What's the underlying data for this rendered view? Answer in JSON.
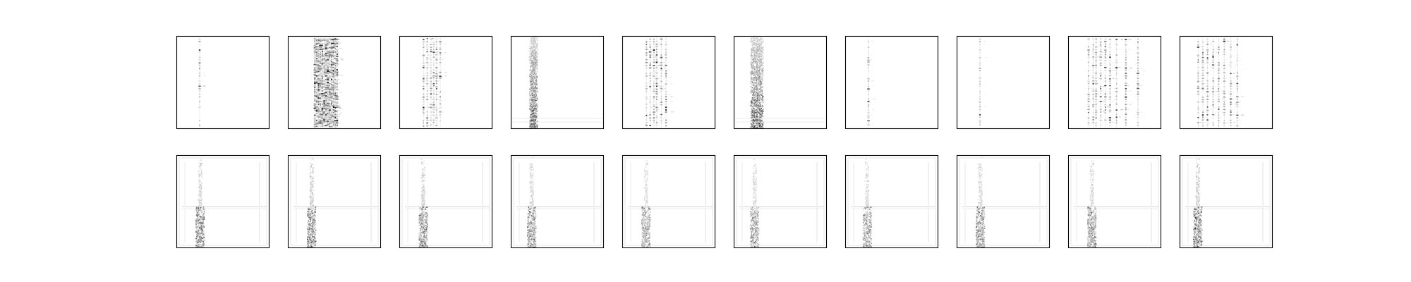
{
  "figure": {
    "grid": {
      "rows": 2,
      "cols": 10
    },
    "axes_ticks": "off",
    "frame_color": "#000000",
    "colormap": "gray_r",
    "rows": [
      {
        "name": "top-row",
        "panels": [
          {
            "columns": [
              0.25
            ],
            "pattern": "dotted-lines",
            "density": 0.35
          },
          {
            "columns": [
              0.29,
              0.31,
              0.33,
              0.35,
              0.37,
              0.39,
              0.41,
              0.43,
              0.45,
              0.47,
              0.49,
              0.51,
              0.53
            ],
            "pattern": "dense-dotted-band",
            "density": 0.55
          },
          {
            "columns": [
              0.26,
              0.3,
              0.34,
              0.37,
              0.4,
              0.44
            ],
            "pattern": "dotted-lines",
            "density": 0.4
          },
          {
            "columns": [
              0.22,
              0.24,
              0.26
            ],
            "pattern": "noisy-band",
            "density": 0.5
          },
          {
            "columns": [
              0.26,
              0.3,
              0.34,
              0.37,
              0.42,
              0.47
            ],
            "pattern": "dotted-lines",
            "density": 0.45
          },
          {
            "columns": [
              0.2,
              0.23,
              0.26,
              0.29
            ],
            "pattern": "noisy-band",
            "density": 0.5
          },
          {
            "columns": [
              0.25
            ],
            "pattern": "dotted-lines",
            "density": 0.35
          },
          {
            "columns": [
              0.25
            ],
            "pattern": "dotted-lines",
            "density": 0.3
          },
          {
            "columns": [
              0.22,
              0.27,
              0.3,
              0.35,
              0.4,
              0.45,
              0.52,
              0.62,
              0.75
            ],
            "pattern": "dotted-lines",
            "density": 0.4
          },
          {
            "columns": [
              0.2,
              0.25,
              0.3,
              0.36,
              0.42,
              0.48,
              0.55,
              0.62
            ],
            "pattern": "dotted-lines",
            "density": 0.4
          }
        ]
      },
      {
        "name": "bottom-row",
        "panels": [
          {
            "columns": [
              0.25
            ],
            "pattern": "band-lower-dense",
            "density": 0.6
          },
          {
            "columns": [
              0.25
            ],
            "pattern": "band-lower-dense",
            "density": 0.65
          },
          {
            "columns": [
              0.25
            ],
            "pattern": "band-lower-dense",
            "density": 0.6
          },
          {
            "columns": [
              0.22
            ],
            "pattern": "band-lower-dense",
            "density": 0.55
          },
          {
            "columns": [
              0.25
            ],
            "pattern": "band-lower-dense",
            "density": 0.45
          },
          {
            "columns": [
              0.22
            ],
            "pattern": "band-lower-dense",
            "density": 0.5
          },
          {
            "columns": [
              0.23
            ],
            "pattern": "band-lower-dense",
            "density": 0.5
          },
          {
            "columns": [
              0.25
            ],
            "pattern": "band-lower-dense",
            "density": 0.55
          },
          {
            "columns": [
              0.25
            ],
            "pattern": "band-lower-dense",
            "density": 0.5
          },
          {
            "columns": [
              0.19
            ],
            "pattern": "band-lower-dense",
            "density": 0.65
          }
        ]
      }
    ]
  }
}
